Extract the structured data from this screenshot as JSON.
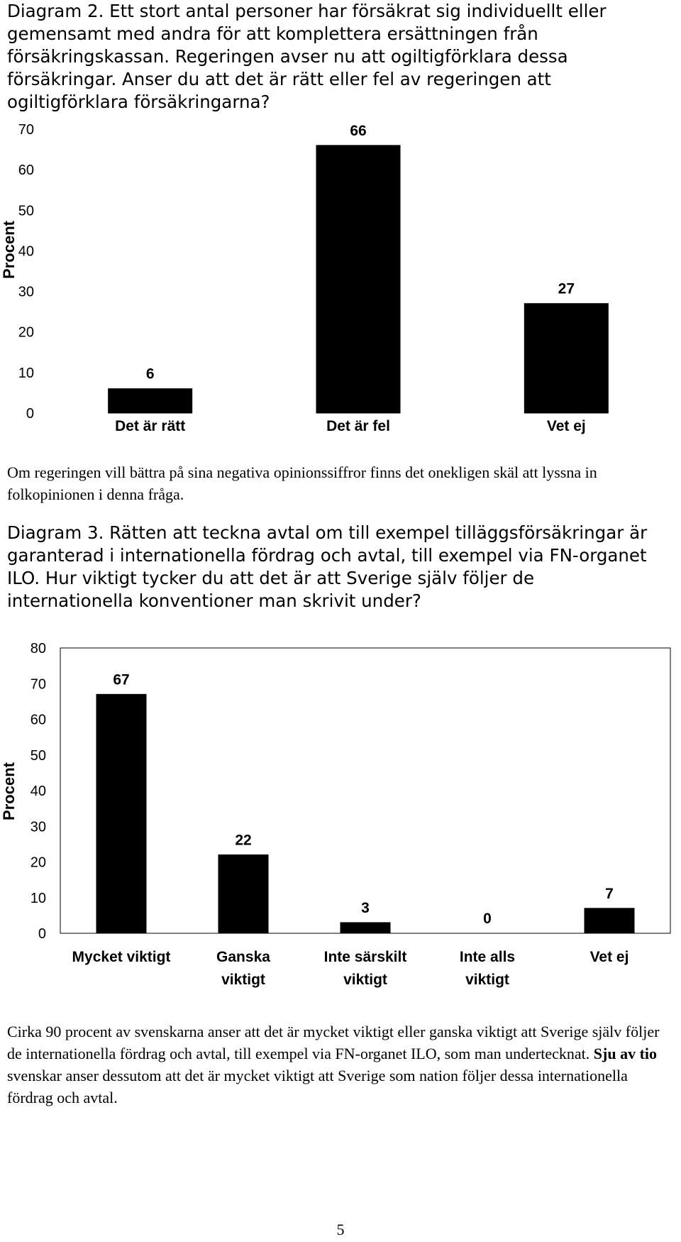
{
  "diagram2": {
    "heading": "Diagram 2.",
    "question": "Ett stort antal personer har försäkrat sig individuellt eller gemensamt med andra för att komplettera ersättningen från försäkringskassan. Regeringen avser nu att ogiltigförklara dessa försäkringar. Anser du att det är rätt eller fel av regeringen att ogiltigförklara försäkringarna?",
    "comment": "Om regeringen vill bättra på sina negativa opinionssiffror finns det onekligen skäl att lyssna in folkopinionen i denna fråga."
  },
  "diagram3": {
    "heading": "Diagram 3.",
    "question": "Rätten att teckna avtal om till exempel tilläggsförsäkringar är garanterad i internationella fördrag och avtal, till exempel via FN-organet ILO. Hur viktigt tycker du att det är att Sverige själv följer de internationella konventioner man skrivit under?",
    "comment_part1": "Cirka 90 procent av svenskarna anser att det är mycket viktigt eller ganska viktigt att Sverige själv följer de internationella fördrag och avtal, till exempel via FN-organet ILO, som man undertecknat. ",
    "comment_bold": "Sju av tio",
    "comment_part2": " svenskar anser dessutom att det är mycket viktigt att Sverige som nation följer dessa internationella fördrag och avtal."
  },
  "page_number": "5",
  "chart_data": [
    {
      "type": "bar",
      "categories": [
        [
          "Det är rätt"
        ],
        [
          "Det är fel"
        ],
        [
          "Vet ej"
        ]
      ],
      "values": [
        6,
        66,
        27
      ],
      "data_labels": [
        "6",
        "66",
        "27"
      ],
      "ylabel": "Procent",
      "ylim": [
        0,
        70
      ],
      "yticks": [
        0,
        10,
        20,
        30,
        40,
        50,
        60,
        70
      ],
      "plot_frame": false,
      "bar_color": "#000000"
    },
    {
      "type": "bar",
      "categories": [
        [
          "Mycket viktigt"
        ],
        [
          "Ganska",
          "viktigt"
        ],
        [
          "Inte särskilt",
          "viktigt"
        ],
        [
          "Inte alls",
          "viktigt"
        ],
        [
          "Vet ej"
        ]
      ],
      "values": [
        67,
        22,
        3,
        0,
        7
      ],
      "data_labels": [
        "67",
        "22",
        "3",
        "0",
        "7"
      ],
      "ylabel": "Procent",
      "ylim": [
        0,
        80
      ],
      "yticks": [
        0,
        10,
        20,
        30,
        40,
        50,
        60,
        70,
        80
      ],
      "plot_frame": true,
      "bar_color": "#000000"
    }
  ]
}
